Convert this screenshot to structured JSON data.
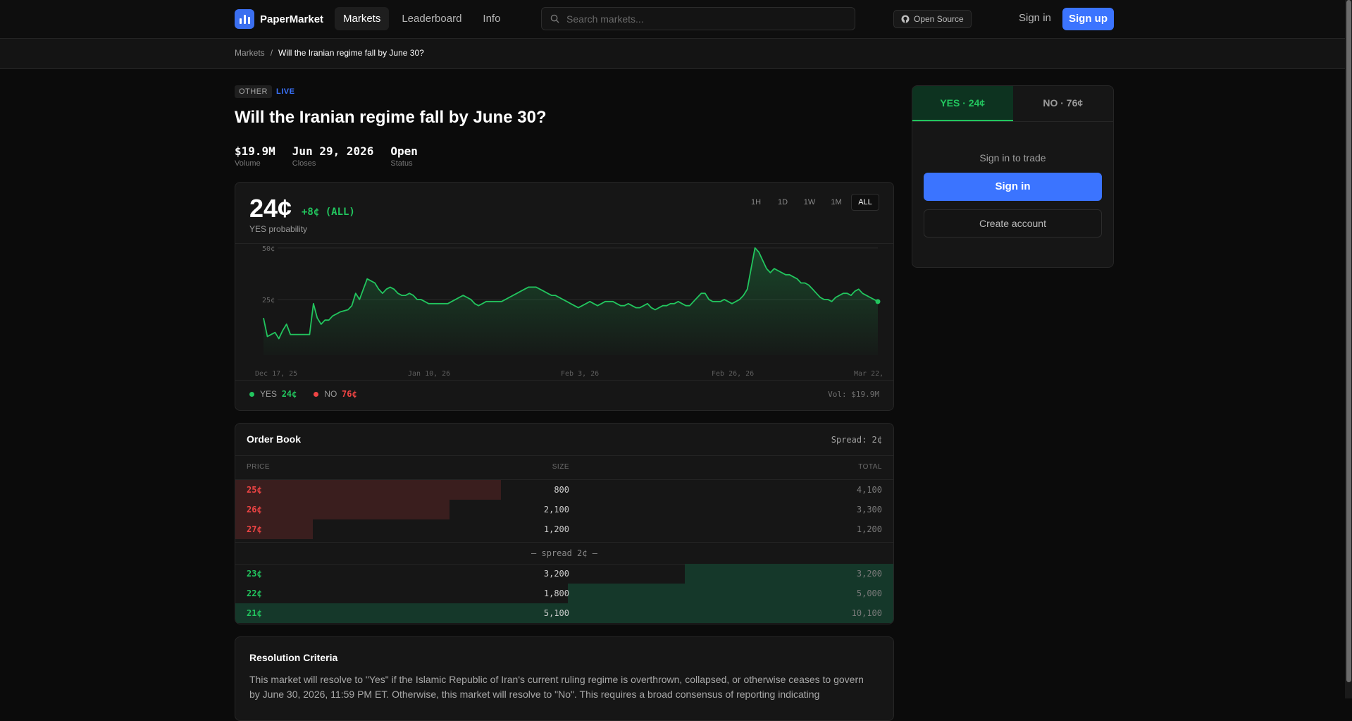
{
  "nav": {
    "brand": "PaperMarket",
    "items": [
      "Markets",
      "Leaderboard",
      "Info"
    ],
    "search_placeholder": "Search markets...",
    "open_source": "Open Source",
    "sign_in": "Sign in",
    "sign_up": "Sign up"
  },
  "breadcrumb": {
    "root": "Markets",
    "sep": "/",
    "current": "Will the Iranian regime fall by June 30?"
  },
  "market": {
    "category": "OTHER",
    "live": "LIVE",
    "title": "Will the Iranian regime fall by June 30?",
    "stats": [
      {
        "value": "$19.9M",
        "label": "Volume"
      },
      {
        "value": "Jun 29, 2026",
        "label": "Closes"
      },
      {
        "value": "Open",
        "label": "Status"
      }
    ]
  },
  "price": {
    "value": "24¢",
    "change": "+8¢ (ALL)",
    "label": "YES probability",
    "ranges": [
      "1H",
      "1D",
      "1W",
      "1M",
      "ALL"
    ],
    "active_range": "ALL",
    "legend_yes_label": "YES",
    "legend_yes_value": "24¢",
    "legend_no_label": "NO",
    "legend_no_value": "76¢",
    "volume": "Vol: $19.9M"
  },
  "chart_data": {
    "type": "area",
    "y_ticks": [
      "50¢",
      "25¢"
    ],
    "ylim": [
      0,
      52
    ],
    "x_ticks": [
      "Dec 17, 25",
      "Jan 10, 26",
      "Feb 3, 26",
      "Feb 26, 26",
      "Mar 22,"
    ],
    "grid": true,
    "color": "#22c55e",
    "values": [
      16,
      7,
      8,
      9,
      6,
      10,
      13,
      8,
      8,
      8,
      8,
      8,
      8,
      23,
      16,
      13,
      15,
      15,
      17,
      18,
      19,
      19.5,
      20,
      22,
      28,
      25,
      30,
      35,
      34,
      33,
      30,
      28,
      30,
      31,
      30,
      28,
      27,
      27,
      28,
      27,
      25,
      25,
      24,
      23,
      23,
      23,
      23,
      23,
      23,
      24,
      25,
      26,
      27,
      26,
      25,
      23,
      22,
      23,
      24,
      24,
      24,
      24,
      24,
      25,
      26,
      27,
      28,
      29,
      30,
      31,
      31,
      31,
      30,
      29,
      28,
      27,
      27,
      26,
      25,
      24,
      23,
      22,
      21,
      22,
      23,
      24,
      23,
      22,
      23,
      24,
      24,
      24,
      23,
      22,
      22,
      23,
      22,
      21,
      21,
      22,
      23,
      21,
      20,
      21,
      22,
      22,
      23,
      23,
      24,
      23,
      22,
      22,
      24,
      26,
      28,
      28,
      25,
      24,
      24,
      24,
      25,
      24,
      23,
      24,
      25,
      27,
      30,
      40,
      50,
      48,
      44,
      40,
      38,
      40,
      39,
      38,
      37,
      37,
      36,
      35,
      33,
      33,
      32,
      30,
      28,
      26,
      25,
      25,
      24,
      26,
      27,
      28,
      28,
      27,
      29,
      30,
      28,
      27,
      26,
      25,
      24
    ]
  },
  "orderbook": {
    "title": "Order Book",
    "spread": "Spread: 2¢",
    "headers": {
      "price": "PRICE",
      "size": "SIZE",
      "total": "TOTAL"
    },
    "asks": [
      {
        "price": "25¢",
        "size": "800",
        "total": "4,100",
        "depth": 0.404
      },
      {
        "price": "26¢",
        "size": "2,100",
        "total": "3,300",
        "depth": 0.325
      },
      {
        "price": "27¢",
        "size": "1,200",
        "total": "1,200",
        "depth": 0.118
      }
    ],
    "mid": "— spread 2¢ —",
    "bids": [
      {
        "price": "23¢",
        "size": "3,200",
        "total": "3,200",
        "depth": 0.317
      },
      {
        "price": "22¢",
        "size": "1,800",
        "total": "5,000",
        "depth": 0.495
      },
      {
        "price": "21¢",
        "size": "5,100",
        "total": "10,100",
        "depth": 1.0
      }
    ]
  },
  "resolution": {
    "title": "Resolution Criteria",
    "text": "This market will resolve to \"Yes\" if the Islamic Republic of Iran's current ruling regime is overthrown, collapsed, or otherwise ceases to govern by June 30, 2026, 11:59 PM ET. Otherwise, this market will resolve to \"No\". This requires a broad consensus of reporting indicating"
  },
  "trade": {
    "yes_tab": "YES · 24¢",
    "no_tab": "NO · 76¢",
    "message": "Sign in to trade",
    "sign_in": "Sign in",
    "create": "Create account"
  }
}
